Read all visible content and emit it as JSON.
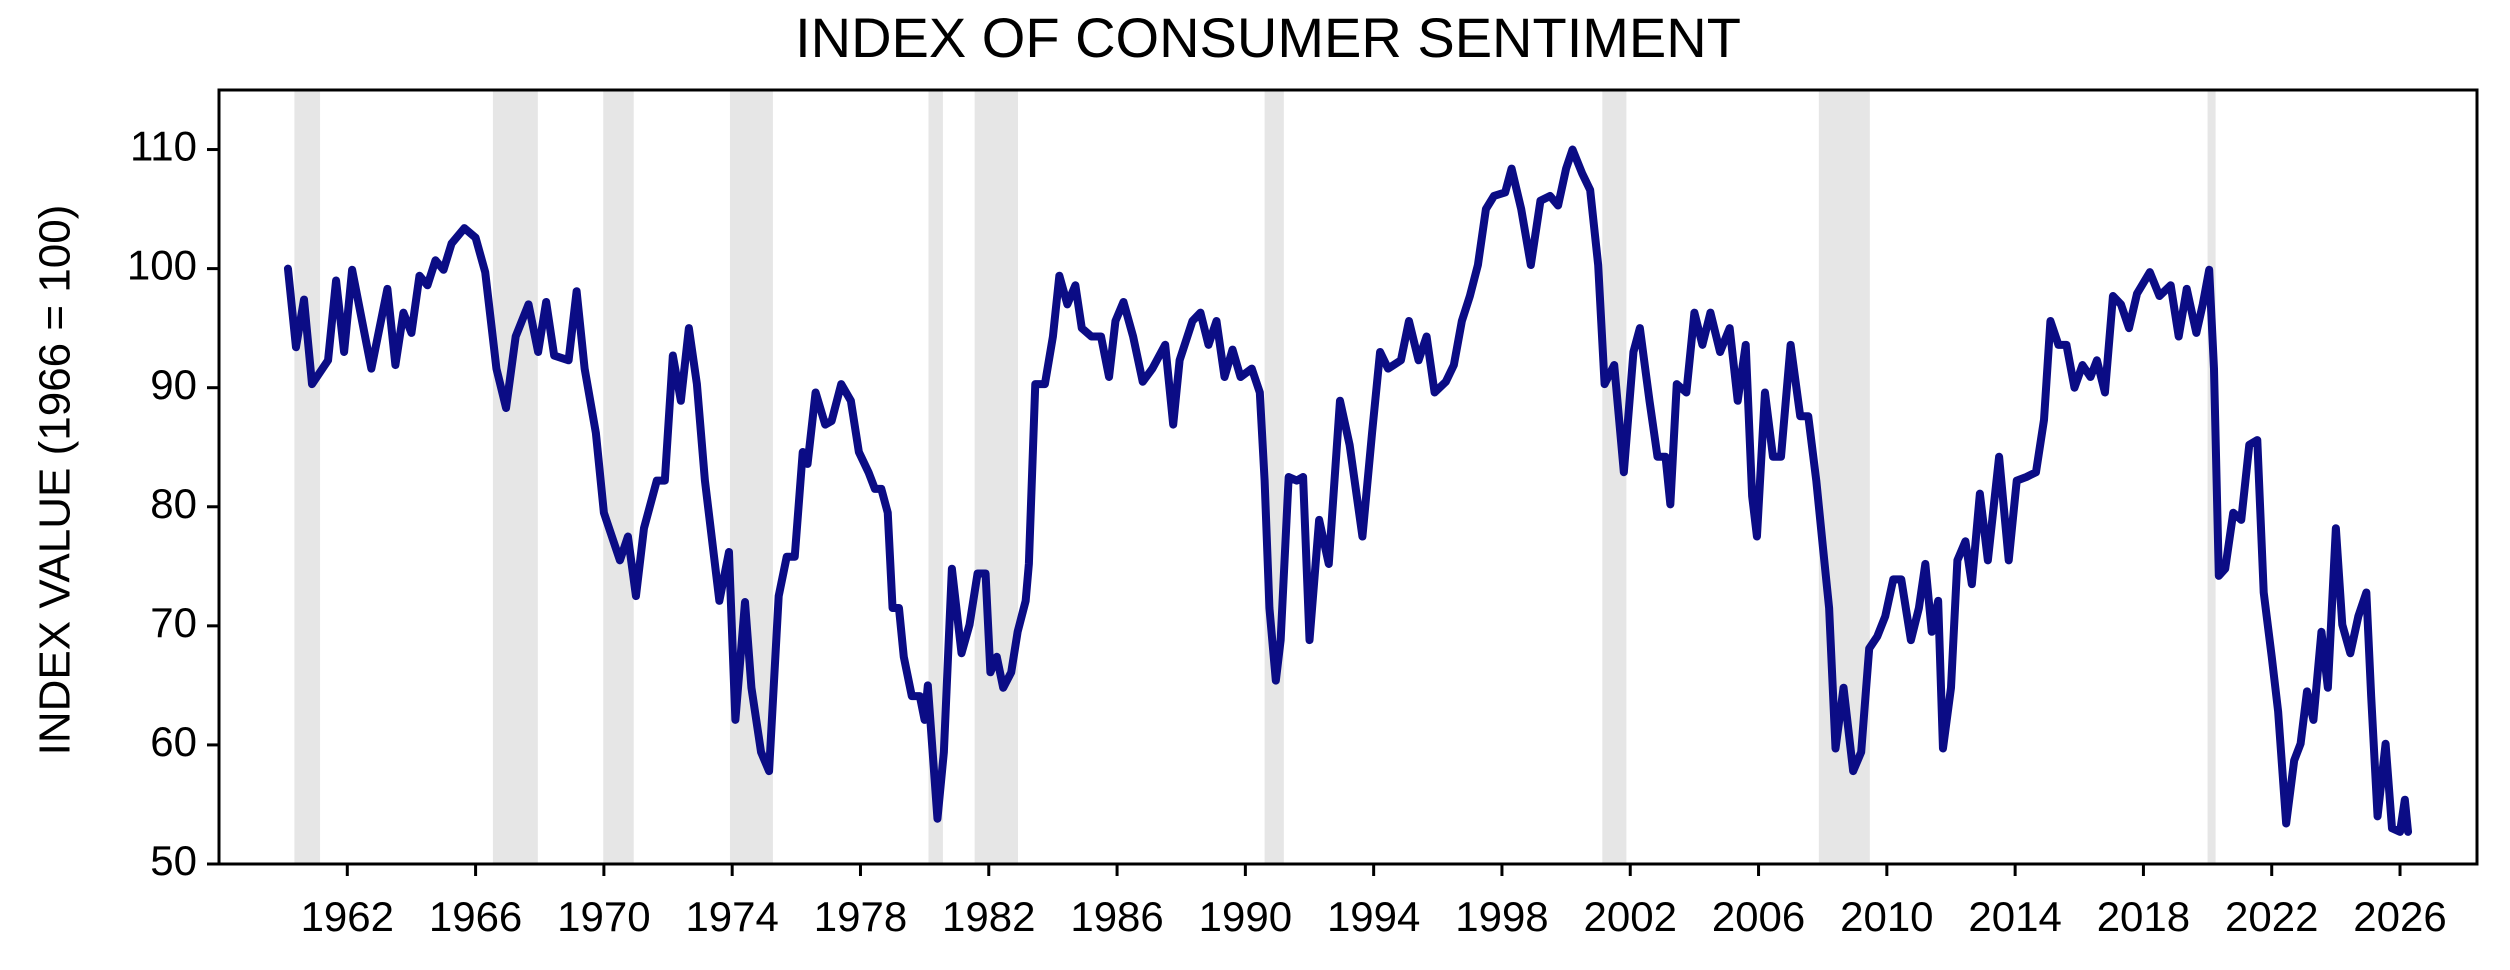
{
  "chart_data": {
    "type": "line",
    "title": "INDEX OF CONSUMER SENTIMENT",
    "y_label": "INDEX VALUE (1966 = 100)",
    "color": "#0b0c85",
    "recession_color": "#e6e6e6",
    "xlim": [
      1958,
      2028.4
    ],
    "xticks": [
      1962,
      1966,
      1970,
      1974,
      1978,
      1982,
      1986,
      1990,
      1994,
      1998,
      2002,
      2006,
      2010,
      2014,
      2018,
      2022,
      2026
    ],
    "ylim": [
      50,
      115
    ],
    "yticks": [
      50,
      60,
      70,
      80,
      90,
      100,
      110
    ],
    "recessions": [
      [
        1960.35,
        1961.15
      ],
      [
        1966.54,
        1967.94
      ],
      [
        1969.98,
        1970.93
      ],
      [
        1973.93,
        1975.27
      ],
      [
        1980.12,
        1980.57
      ],
      [
        1981.56,
        1982.91
      ],
      [
        1990.6,
        1991.2
      ],
      [
        2001.13,
        2001.88
      ],
      [
        2007.88,
        2009.47
      ],
      [
        2020.0,
        2020.25
      ]
    ],
    "x": [
      1960.15,
      1960.4,
      1960.65,
      1960.9,
      1961.4,
      1961.65,
      1961.9,
      1962.15,
      1962.75,
      1963.25,
      1963.5,
      1963.75,
      1964.0,
      1964.25,
      1964.5,
      1964.75,
      1965.0,
      1965.25,
      1965.65,
      1966.0,
      1966.3,
      1966.65,
      1966.95,
      1967.25,
      1967.65,
      1967.95,
      1968.2,
      1968.45,
      1968.9,
      1969.15,
      1969.4,
      1969.75,
      1970.0,
      1970.5,
      1970.75,
      1971.0,
      1971.25,
      1971.65,
      1971.9,
      1972.15,
      1972.4,
      1972.65,
      1972.9,
      1973.15,
      1973.6,
      1973.9,
      1974.1,
      1974.4,
      1974.6,
      1974.9,
      1975.15,
      1975.45,
      1975.7,
      1975.95,
      1976.2,
      1976.35,
      1976.6,
      1976.9,
      1977.1,
      1977.4,
      1977.7,
      1977.95,
      1978.25,
      1978.45,
      1978.65,
      1978.85,
      1979.0,
      1979.2,
      1979.35,
      1979.6,
      1979.85,
      1980.0,
      1980.1,
      1980.25,
      1980.4,
      1980.6,
      1980.85,
      1981.15,
      1981.4,
      1981.65,
      1981.9,
      1982.05,
      1982.25,
      1982.45,
      1982.7,
      1982.9,
      1983.15,
      1983.25,
      1983.45,
      1983.75,
      1984.0,
      1984.2,
      1984.45,
      1984.7,
      1984.9,
      1985.2,
      1985.5,
      1985.75,
      1985.95,
      1986.2,
      1986.5,
      1986.8,
      1987.1,
      1987.5,
      1987.75,
      1987.95,
      1988.35,
      1988.6,
      1988.85,
      1989.1,
      1989.35,
      1989.6,
      1989.85,
      1990.2,
      1990.45,
      1990.6,
      1990.75,
      1990.95,
      1991.1,
      1991.35,
      1991.6,
      1991.8,
      1992.0,
      1992.3,
      1992.6,
      1992.95,
      1993.25,
      1993.65,
      1993.95,
      1994.2,
      1994.45,
      1994.85,
      1995.1,
      1995.4,
      1995.65,
      1995.9,
      1996.25,
      1996.5,
      1996.75,
      1997.0,
      1997.25,
      1997.5,
      1997.75,
      1998.1,
      1998.3,
      1998.6,
      1998.9,
      1999.2,
      1999.5,
      1999.75,
      2000.0,
      2000.2,
      2000.5,
      2000.75,
      2001.0,
      2001.2,
      2001.5,
      2001.8,
      2002.1,
      2002.3,
      2002.6,
      2002.85,
      2003.1,
      2003.25,
      2003.45,
      2003.75,
      2004.0,
      2004.25,
      2004.5,
      2004.8,
      2005.1,
      2005.35,
      2005.6,
      2005.8,
      2005.95,
      2006.2,
      2006.45,
      2006.7,
      2007.0,
      2007.3,
      2007.55,
      2007.8,
      2008.0,
      2008.2,
      2008.4,
      2008.65,
      2008.95,
      2009.2,
      2009.45,
      2009.7,
      2009.95,
      2010.2,
      2010.45,
      2010.75,
      2011.0,
      2011.2,
      2011.4,
      2011.6,
      2011.75,
      2012.0,
      2012.2,
      2012.45,
      2012.65,
      2012.9,
      2013.15,
      2013.5,
      2013.8,
      2014.05,
      2014.35,
      2014.65,
      2014.9,
      2015.1,
      2015.35,
      2015.6,
      2015.85,
      2016.1,
      2016.35,
      2016.55,
      2016.8,
      2017.05,
      2017.3,
      2017.55,
      2017.8,
      2018.2,
      2018.5,
      2018.85,
      2019.1,
      2019.35,
      2019.65,
      2019.85,
      2020.05,
      2020.2,
      2020.35,
      2020.55,
      2020.8,
      2021.05,
      2021.3,
      2021.55,
      2021.75,
      2022.0,
      2022.2,
      2022.45,
      2022.7,
      2022.9,
      2023.1,
      2023.3,
      2023.55,
      2023.75,
      2024.0,
      2024.2,
      2024.45,
      2024.7,
      2024.95,
      2025.1,
      2025.3,
      2025.55,
      2025.75,
      2026.0,
      2026.15,
      2026.25
    ],
    "values": [
      100,
      93.4,
      97.4,
      90.3,
      92.3,
      99,
      93,
      99.9,
      91.6,
      98.3,
      91.9,
      96.3,
      94.6,
      99.4,
      98.6,
      100.7,
      99.9,
      102.1,
      103.4,
      102.6,
      99.7,
      91.6,
      88.3,
      94.3,
      97,
      93,
      97.2,
      92.7,
      92.3,
      98.1,
      91.6,
      86.2,
      79.5,
      75.5,
      77.5,
      72.5,
      78.2,
      82.2,
      82.2,
      92.7,
      88.9,
      95,
      90.3,
      82.2,
      72.1,
      76.2,
      62.1,
      72,
      64.8,
      59.4,
      57.8,
      72.5,
      75.8,
      75.8,
      84.6,
      83.6,
      89.6,
      86.9,
      87.2,
      90.3,
      88.9,
      84.6,
      82.9,
      81.5,
      81.5,
      79.5,
      71.5,
      71.5,
      67.4,
      64.1,
      64.1,
      62.1,
      65,
      59.4,
      53.8,
      59.4,
      74.8,
      67.7,
      70.1,
      74.4,
      74.4,
      66.1,
      67.4,
      64.8,
      66.1,
      69.5,
      72.1,
      75.2,
      90.3,
      90.3,
      94.3,
      99.4,
      97,
      98.6,
      95,
      94.3,
      94.3,
      90.9,
      95.6,
      97.2,
      94.3,
      90.5,
      91.6,
      93.6,
      86.9,
      92.3,
      95.6,
      96.3,
      93.6,
      95.6,
      90.9,
      93.2,
      90.9,
      91.6,
      89.6,
      82.2,
      71.5,
      65.4,
      68.8,
      82.5,
      82.2,
      82.5,
      68.8,
      78.9,
      75.2,
      88.9,
      85.2,
      77.5,
      86.2,
      93,
      91.6,
      92.3,
      95.6,
      92.3,
      94.3,
      89.6,
      90.5,
      91.9,
      95.6,
      97.7,
      100.3,
      105,
      106.1,
      106.4,
      108.4,
      105,
      100.3,
      105.7,
      106.1,
      105.3,
      108.4,
      110,
      108,
      106.6,
      100.3,
      90.3,
      91.9,
      82.9,
      93,
      95,
      88.9,
      84.2,
      84.2,
      80.2,
      90.3,
      89.6,
      96.3,
      93.6,
      96.3,
      93,
      95,
      88.9,
      93.6,
      80.9,
      77.5,
      89.6,
      84.2,
      84.2,
      93.6,
      87.6,
      87.6,
      82.2,
      76.8,
      71.5,
      59.7,
      64.8,
      57.8,
      59.4,
      68.1,
      69.1,
      70.8,
      73.9,
      73.9,
      68.8,
      71.5,
      75.2,
      69.5,
      72.1,
      59.7,
      64.8,
      75.5,
      77.1,
      73.5,
      81.1,
      75.5,
      84.2,
      75.5,
      82.2,
      82.5,
      82.9,
      87.3,
      95.6,
      93.6,
      93.6,
      90,
      91.9,
      90.9,
      92.3,
      89.6,
      97.7,
      97,
      95,
      97.9,
      99.7,
      97.7,
      98.6,
      94.3,
      98.3,
      94.6,
      97,
      99.9,
      91.6,
      74.2,
      74.8,
      79.5,
      78.9,
      85.2,
      85.6,
      72.8,
      67.4,
      62.8,
      53.4,
      58.7,
      60.1,
      64.5,
      62.1,
      69.5,
      64.8,
      78.2,
      70.1,
      67.7,
      70.8,
      72.8,
      64.1,
      54,
      60.1,
      53,
      52.7,
      55.4,
      52.7
    ]
  }
}
